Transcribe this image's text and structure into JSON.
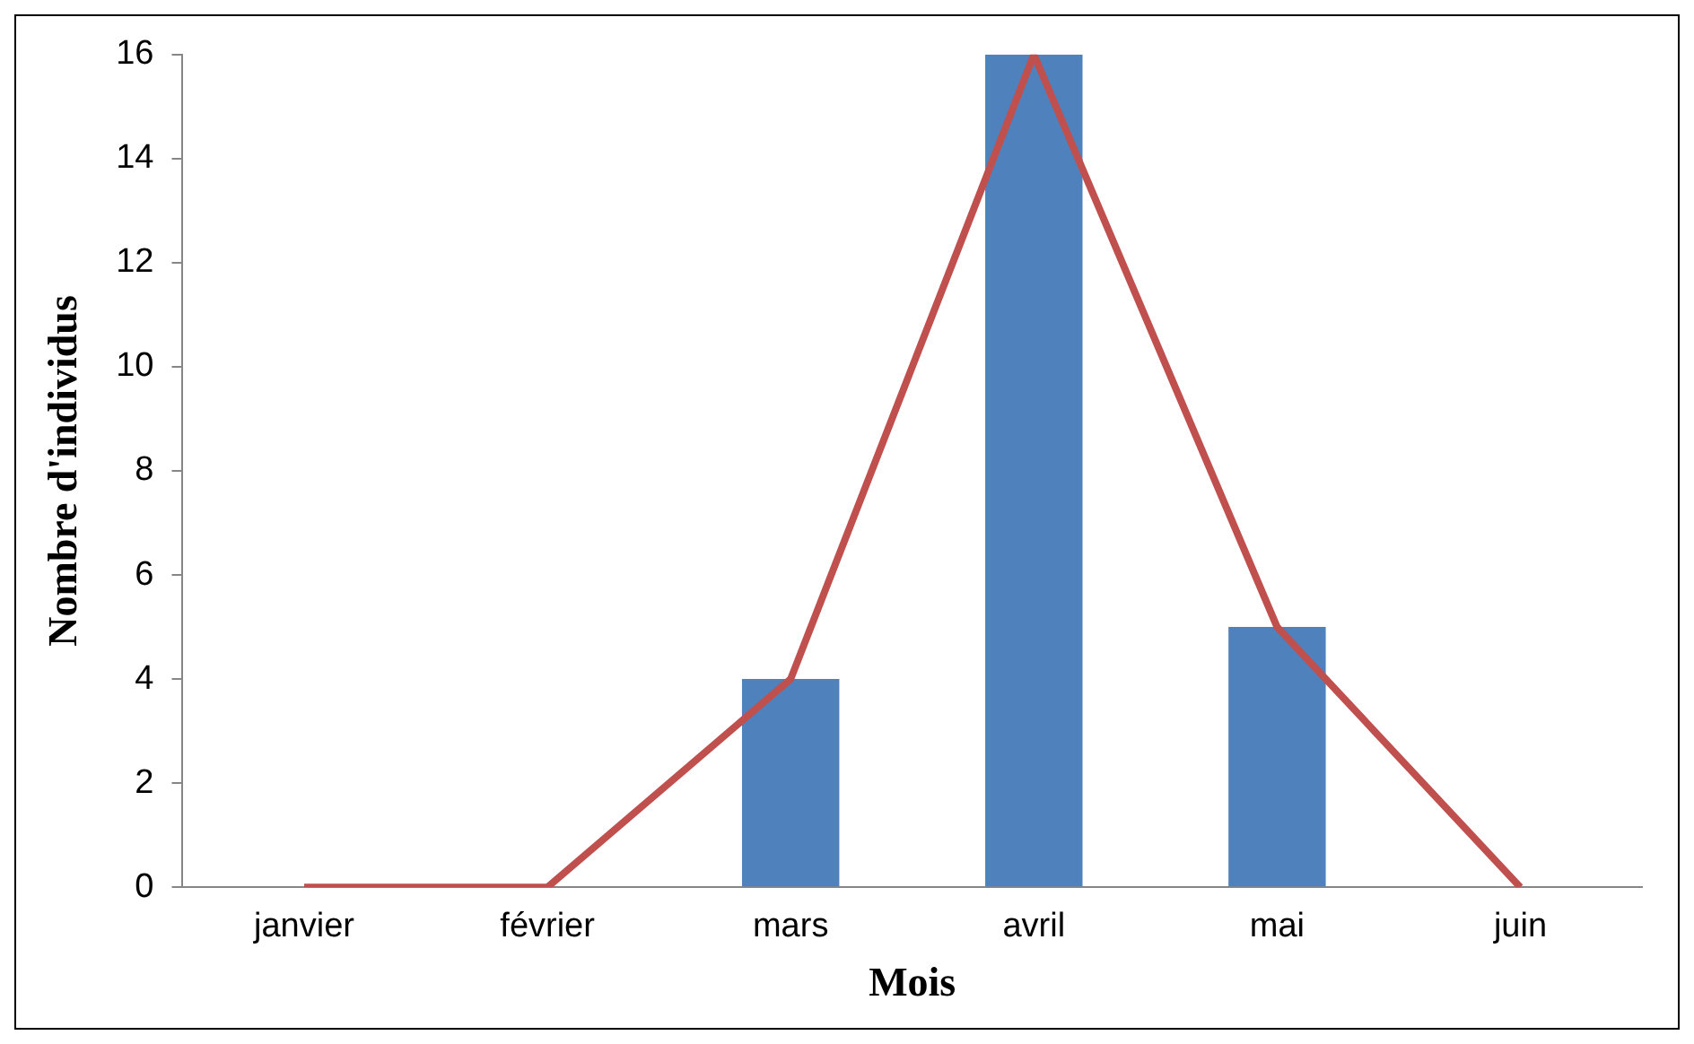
{
  "chart_data": {
    "type": "bar",
    "xlabel": "Mois",
    "ylabel": "Nombre d'individus",
    "categories": [
      "janvier",
      "février",
      "mars",
      "avril",
      "mai",
      "juin"
    ],
    "series": [
      {
        "color": "#4f81bd",
        "values": [
          0,
          0,
          4,
          16,
          5,
          0
        ]
      },
      {
        "type": "line",
        "color": "#c0504d",
        "values": [
          0,
          0,
          4,
          16,
          5,
          0
        ]
      }
    ],
    "ylim": [
      0,
      16
    ],
    "yticks": [
      0,
      2,
      4,
      6,
      8,
      10,
      12,
      14,
      16
    ],
    "grid": false,
    "legend": false,
    "marker": "none"
  }
}
